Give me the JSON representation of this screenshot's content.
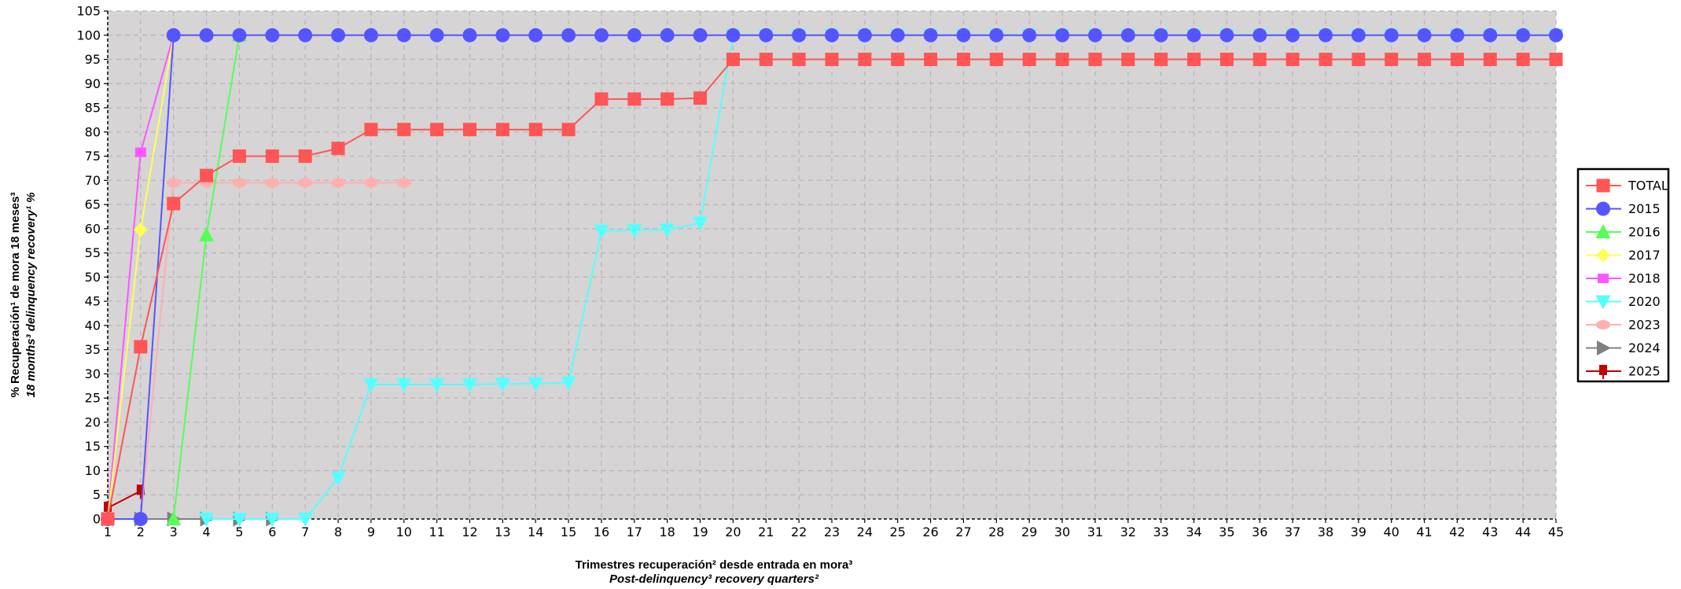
{
  "chart_data": {
    "type": "line",
    "xlabel": "Trimestres recuperación² desde entrada en mora³",
    "xlabel_en": "Post-delinquency³ recovery quarters²",
    "ylabel": "% Recuperación¹ de mora 18 meses³",
    "ylabel_en": "18 months³ delinquency recovery¹ %",
    "xlim": [
      1,
      45
    ],
    "ylim": [
      0,
      105
    ],
    "yticks_step": 5,
    "grid": true,
    "background": "#d6d4d5",
    "legend_position": "right",
    "series": [
      {
        "name": "TOTAL",
        "color": "#ff5555",
        "marker": "square",
        "x": [
          1,
          2,
          3,
          4,
          5,
          6,
          7,
          8,
          9,
          10,
          11,
          12,
          13,
          14,
          15,
          16,
          17,
          18,
          19,
          20,
          21,
          22,
          23,
          24,
          25,
          26,
          27,
          28,
          29,
          30,
          31,
          32,
          33,
          34,
          35,
          36,
          37,
          38,
          39,
          40,
          41,
          42,
          43,
          44,
          45
        ],
        "y": [
          0,
          35.6,
          65.2,
          71,
          75,
          75,
          75,
          76.6,
          80.5,
          80.5,
          80.5,
          80.5,
          80.5,
          80.5,
          80.5,
          86.8,
          86.8,
          86.8,
          87,
          95,
          95,
          95,
          95,
          95,
          95,
          95,
          95,
          95,
          95,
          95,
          95,
          95,
          95,
          95,
          95,
          95,
          95,
          95,
          95,
          95,
          95,
          95,
          95,
          95,
          95
        ]
      },
      {
        "name": "2015",
        "color": "#5555ff",
        "marker": "circle",
        "x": [
          1,
          2,
          3,
          4,
          5,
          6,
          7,
          8,
          9,
          10,
          11,
          12,
          13,
          14,
          15,
          16,
          17,
          18,
          19,
          20,
          21,
          22,
          23,
          24,
          25,
          26,
          27,
          28,
          29,
          30,
          31,
          32,
          33,
          34,
          35,
          36,
          37,
          38,
          39,
          40,
          41,
          42,
          43,
          44,
          45
        ],
        "y": [
          0,
          0,
          100,
          100,
          100,
          100,
          100,
          100,
          100,
          100,
          100,
          100,
          100,
          100,
          100,
          100,
          100,
          100,
          100,
          100,
          100,
          100,
          100,
          100,
          100,
          100,
          100,
          100,
          100,
          100,
          100,
          100,
          100,
          100,
          100,
          100,
          100,
          100,
          100,
          100,
          100,
          100,
          100,
          100,
          100
        ]
      },
      {
        "name": "2016",
        "color": "#55ff55",
        "marker": "triangle-up",
        "x": [
          3,
          4,
          5
        ],
        "y": [
          0,
          58.7,
          100
        ]
      },
      {
        "name": "2017",
        "color": "#ffff55",
        "marker": "diamond",
        "x": [
          1,
          2,
          3
        ],
        "y": [
          0,
          59.8,
          100
        ]
      },
      {
        "name": "2018",
        "color": "#ff55ff",
        "marker": "square-small",
        "x": [
          1,
          2,
          3
        ],
        "y": [
          0,
          75.8,
          100
        ]
      },
      {
        "name": "2020",
        "color": "#55ffff",
        "marker": "triangle-down",
        "x": [
          4,
          5,
          6,
          7,
          8,
          9,
          10,
          11,
          12,
          13,
          14,
          15,
          16,
          17,
          18,
          19,
          20,
          21,
          22,
          23,
          24,
          25,
          26,
          27,
          28,
          29,
          30,
          31,
          32,
          33,
          34,
          35,
          36,
          37,
          38,
          39,
          40,
          41,
          42,
          43,
          44,
          45
        ],
        "y": [
          0,
          0,
          0,
          0,
          8.5,
          27.8,
          27.8,
          27.8,
          27.8,
          27.9,
          28,
          28.2,
          59.5,
          59.7,
          59.8,
          61.2,
          100,
          100,
          100,
          100,
          100,
          100,
          100,
          100,
          100,
          100,
          100,
          100,
          100,
          100,
          100,
          100,
          100,
          100,
          100,
          100,
          100,
          100,
          100,
          100,
          100,
          100
        ]
      },
      {
        "name": "2023",
        "color": "#ffafaf",
        "marker": "ellipse",
        "x": [
          1,
          2,
          3,
          4,
          5,
          6,
          7,
          8,
          9,
          10
        ],
        "y": [
          0,
          0,
          69.5,
          69.5,
          69.5,
          69.5,
          69.5,
          69.5,
          69.5,
          69.5
        ]
      },
      {
        "name": "2024",
        "color": "#808080",
        "marker": "triangle-right",
        "x": [
          1,
          2,
          3,
          4,
          5,
          6
        ],
        "y": [
          0,
          0,
          0,
          0,
          0,
          0
        ]
      },
      {
        "name": "2025",
        "color": "#c00000",
        "marker": "flag",
        "x": [
          1,
          2
        ],
        "y": [
          2.3,
          5.8
        ]
      }
    ]
  }
}
